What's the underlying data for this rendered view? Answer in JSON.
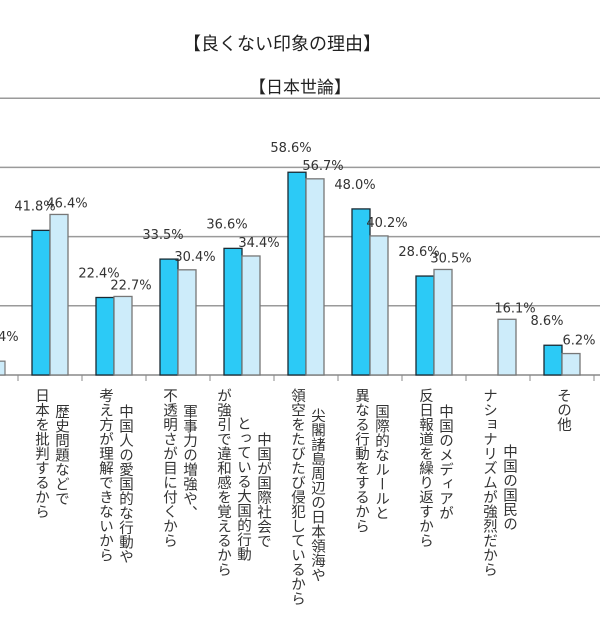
{
  "title": "【良くない印象の理由】",
  "subtitle": "【日本世論】",
  "chart_data": {
    "type": "bar",
    "title": "【良くない印象の理由】",
    "subtitle": "【日本世論】",
    "ylim": [
      0,
      80
    ],
    "grid": true,
    "gridlines": [
      20,
      40,
      60,
      80
    ],
    "partial_left_label": "4%",
    "partial_left_value": 4,
    "categories": [
      [
        "歴史問題などで",
        "日本を批判するから"
      ],
      [
        "中国人の愛国的な行動や",
        "考え方が理解できないから"
      ],
      [
        "軍事力の増強や、",
        "不透明さが目に付くから"
      ],
      [
        "中国が国際社会で",
        "とっている大国的行動",
        "が強引で違和感を覚えるから"
      ],
      [
        "尖閣諸島周辺の日本領海や",
        "領空をたびたび侵犯しているから"
      ],
      [
        "国際的なルールと",
        "異なる行動をするから"
      ],
      [
        "中国のメディアが",
        "反日報道を繰り返すから"
      ],
      [
        "中国の国民の",
        "ナショナリズムが強烈だから"
      ],
      [
        "その他"
      ]
    ],
    "series": [
      {
        "name": "series-1",
        "color": "#2ccaf6",
        "values": [
          41.8,
          22.4,
          33.5,
          36.6,
          58.6,
          48.0,
          28.6,
          null,
          8.6
        ],
        "labels": [
          "41.8%",
          "22.4%",
          "33.5%",
          "36.6%",
          "58.6%",
          "48.0%",
          "28.6%",
          "",
          "8.6%"
        ]
      },
      {
        "name": "series-2",
        "color": "#cdecfa",
        "values": [
          46.4,
          22.7,
          30.4,
          34.4,
          56.7,
          40.2,
          30.5,
          16.1,
          6.2
        ],
        "labels": [
          "46.4%",
          "22.7%",
          "30.4%",
          "34.4%",
          "56.7%",
          "40.2%",
          "30.5%",
          "16.1%",
          "6.2%"
        ]
      }
    ]
  }
}
